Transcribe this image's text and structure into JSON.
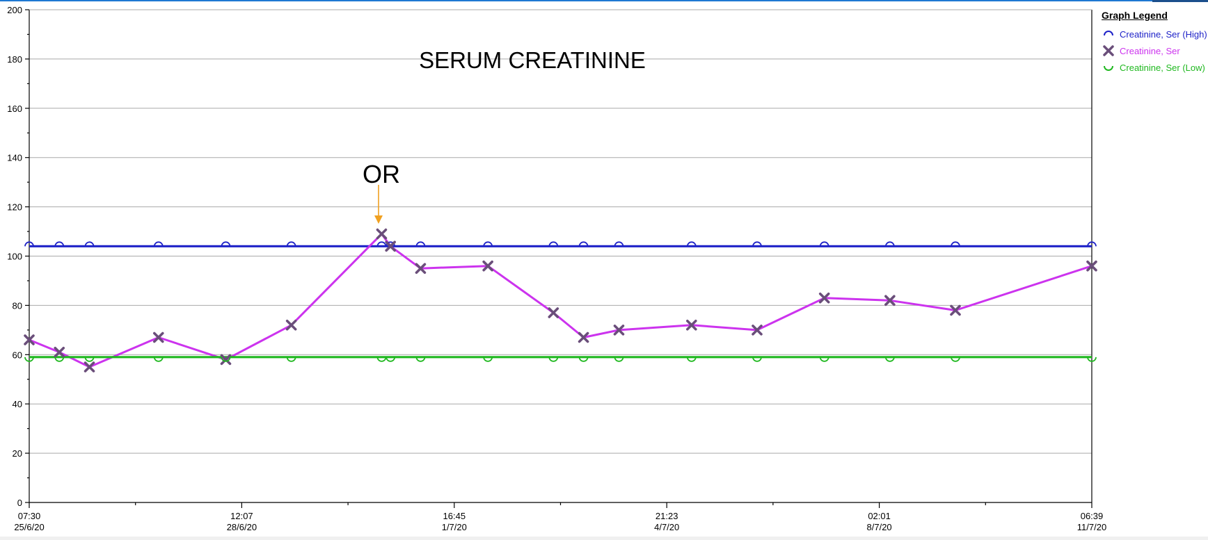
{
  "chart_data": {
    "type": "line",
    "title": "SERUM CREATININE",
    "annotation": "OR",
    "annotation_x": 19.9,
    "ylim": [
      0,
      200
    ],
    "y_ticks": [
      "0",
      "20",
      "40",
      "60",
      "80",
      "100",
      "120",
      "140",
      "160",
      "180",
      "200"
    ],
    "xlim": [
      0,
      60
    ],
    "x_ticks": [
      {
        "x": 0,
        "time": "07:30",
        "date": "25/6/20"
      },
      {
        "x": 12,
        "time": "12:07",
        "date": "28/6/20"
      },
      {
        "x": 24,
        "time": "16:45",
        "date": "1/7/20"
      },
      {
        "x": 36,
        "time": "21:23",
        "date": "4/7/20"
      },
      {
        "x": 48,
        "time": "02:01",
        "date": "8/7/20"
      },
      {
        "x": 60,
        "time": "06:39",
        "date": "11/7/20"
      }
    ],
    "grid": true,
    "legend_title": "Graph Legend",
    "legend_position": "right",
    "series": [
      {
        "name": "Creatinine, Ser (High)",
        "color": "#1e22c8",
        "marker": "upper-semicircle",
        "x": [
          0,
          1.7,
          3.4,
          7.3,
          11.1,
          14.8,
          19.9,
          20.4,
          22.1,
          25.9,
          29.6,
          31.3,
          33.3,
          37.4,
          41.1,
          44.9,
          48.6,
          52.3,
          60
        ],
        "values": [
          104,
          104,
          104,
          104,
          104,
          104,
          104,
          104,
          104,
          104,
          104,
          104,
          104,
          104,
          104,
          104,
          104,
          104,
          104
        ]
      },
      {
        "name": "Creatinine, Ser",
        "color": "#cc33ee",
        "marker": "x",
        "x": [
          0,
          1.7,
          3.4,
          7.3,
          11.1,
          14.8,
          19.9,
          20.4,
          22.1,
          25.9,
          29.6,
          31.3,
          33.3,
          37.4,
          41.1,
          44.9,
          48.6,
          52.3,
          60
        ],
        "values": [
          66,
          61,
          55,
          67,
          58,
          72,
          109,
          104,
          95,
          96,
          77,
          67,
          70,
          72,
          70,
          83,
          82,
          78,
          96
        ]
      },
      {
        "name": "Creatinine, Ser (Low)",
        "color": "#1fb81f",
        "marker": "lower-semicircle",
        "x": [
          0,
          1.7,
          3.4,
          7.3,
          11.1,
          14.8,
          19.9,
          20.4,
          22.1,
          25.9,
          29.6,
          31.3,
          33.3,
          37.4,
          41.1,
          44.9,
          48.6,
          52.3,
          60
        ],
        "values": [
          59,
          59,
          59,
          59,
          59,
          59,
          59,
          59,
          59,
          59,
          59,
          59,
          59,
          59,
          59,
          59,
          59,
          59,
          59
        ]
      }
    ]
  },
  "colors": {
    "marker_x": "#6a4e7a",
    "annotation_arrow": "#f0a020"
  }
}
